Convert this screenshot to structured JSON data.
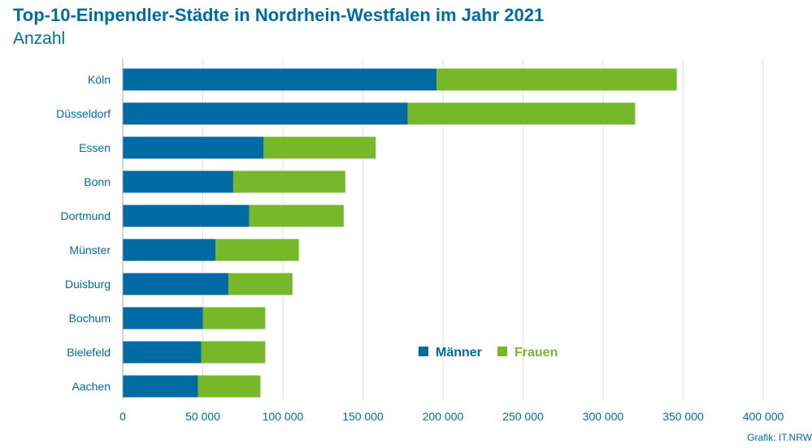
{
  "title": "Top-10-Einpendler-Städte in Nordrhein-Westfalen im Jahr 2021",
  "subtitle": "Anzahl",
  "source": "Grafik: IT.NRW",
  "colors": {
    "text": "#006aa3",
    "maenner": "#006aa3",
    "frauen": "#76b82a",
    "grid": "#dddddd"
  },
  "chart_data": {
    "type": "bar",
    "orientation": "horizontal",
    "stacked": true,
    "categories": [
      "Köln",
      "Düsseldorf",
      "Essen",
      "Bonn",
      "Dortmund",
      "Münster",
      "Duisburg",
      "Bochum",
      "Bielefeld",
      "Aachen"
    ],
    "series": [
      {
        "name": "Männer",
        "color": "#006aa3",
        "values": [
          196000,
          178000,
          88000,
          69000,
          79000,
          58000,
          66000,
          50000,
          49000,
          47000
        ]
      },
      {
        "name": "Frauen",
        "color": "#76b82a",
        "values": [
          150000,
          142000,
          70000,
          70000,
          59000,
          52000,
          40000,
          39000,
          40000,
          39000
        ]
      }
    ],
    "xlim": [
      0,
      400000
    ],
    "xticks": [
      0,
      50000,
      100000,
      150000,
      200000,
      250000,
      300000,
      350000,
      400000
    ],
    "xtick_labels": [
      "0",
      "50 000",
      "100 000",
      "150 000",
      "200 000",
      "250 000",
      "300 000",
      "350 000",
      "400 000"
    ],
    "xlabel": "",
    "ylabel": "",
    "grid": "vertical",
    "legend_position": "lower-right inside plot"
  }
}
